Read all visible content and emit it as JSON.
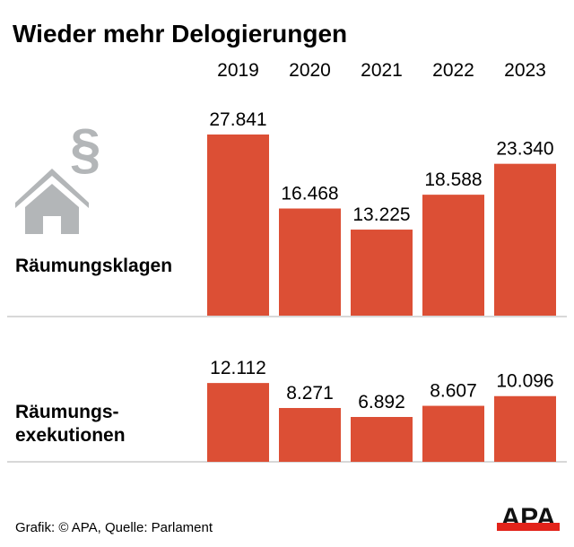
{
  "chart_data": [
    {
      "type": "bar",
      "title": "Wieder mehr Delogierungen",
      "label": "Räumungsklagen",
      "categories": [
        "2019",
        "2020",
        "2021",
        "2022",
        "2023"
      ],
      "values": [
        27841,
        16468,
        13225,
        18588,
        23340
      ],
      "value_labels": [
        "27.841",
        "16.468",
        "13.225",
        "18.588",
        "23.340"
      ],
      "grid": false
    },
    {
      "type": "bar",
      "label_lines": [
        "Räumungs-",
        "exekutionen"
      ],
      "categories": [
        "2019",
        "2020",
        "2021",
        "2022",
        "2023"
      ],
      "values": [
        12112,
        8271,
        6892,
        8607,
        10096
      ],
      "value_labels": [
        "12.112",
        "8.271",
        "6.892",
        "8.607",
        "10.096"
      ],
      "grid": false
    }
  ],
  "colors": {
    "bar": "#dc4f35",
    "icon": "#b3b6b8",
    "divider": "#cccccc",
    "logo_bar": "#e2231a"
  },
  "icons": [
    "house-icon",
    "paragraph-icon"
  ],
  "paragraph_symbol": "§",
  "footer": {
    "source": "Grafik: © APA, Quelle: Parlament",
    "logo": "APA"
  }
}
